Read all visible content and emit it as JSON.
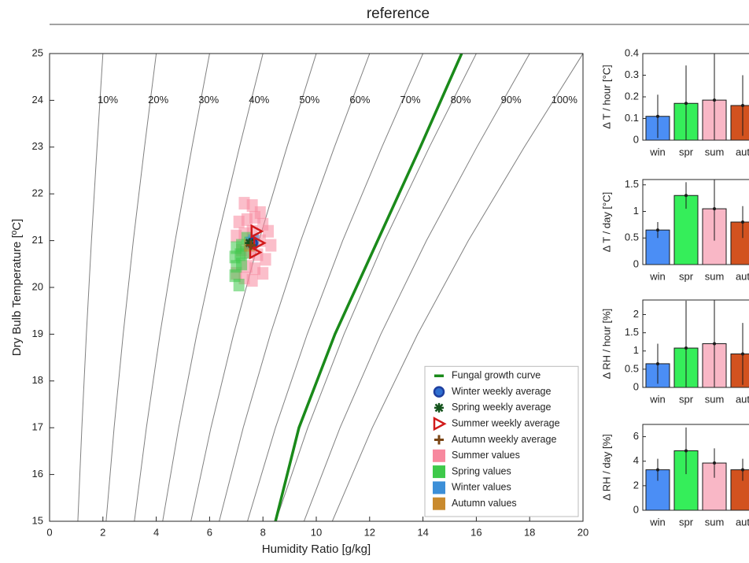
{
  "chart_data": [
    {
      "type": "psychro",
      "title": "reference",
      "xlabel": "Humidity Ratio [g/kg]",
      "ylabel": "Dry Bulb Temperature [ºC]",
      "xlim": [
        0,
        20
      ],
      "ylim": [
        15,
        25
      ],
      "xticks": [
        0,
        2,
        4,
        6,
        8,
        10,
        12,
        14,
        16,
        18,
        20
      ],
      "yticks": [
        15,
        16,
        17,
        18,
        19,
        20,
        21,
        22,
        23,
        24,
        25
      ],
      "legend": "lower right",
      "series": [
        {
          "name": "10%",
          "color": "#808080",
          "marker": "curve",
          "x": [
            1.06,
            1.21,
            1.38,
            1.57,
            1.78,
            2.0
          ],
          "y": [
            15,
            17,
            19,
            21,
            23,
            25
          ]
        },
        {
          "name": "20%",
          "color": "#808080",
          "marker": "curve",
          "x": [
            2.12,
            2.42,
            2.76,
            3.14,
            3.56,
            4.0
          ],
          "y": [
            15,
            17,
            19,
            21,
            23,
            25
          ]
        },
        {
          "name": "30%",
          "color": "#808080",
          "marker": "curve",
          "x": [
            3.18,
            3.63,
            4.14,
            4.71,
            5.34,
            6.0
          ],
          "y": [
            15,
            17,
            19,
            21,
            23,
            25
          ]
        },
        {
          "name": "40%",
          "color": "#808080",
          "marker": "curve",
          "x": [
            4.24,
            4.84,
            5.52,
            6.28,
            7.12,
            8.0
          ],
          "y": [
            15,
            17,
            19,
            21,
            23,
            25
          ]
        },
        {
          "name": "50%",
          "color": "#808080",
          "marker": "curve",
          "x": [
            5.3,
            6.05,
            6.9,
            7.85,
            8.9,
            10.0
          ],
          "y": [
            15,
            17,
            19,
            21,
            23,
            25
          ]
        },
        {
          "name": "60%",
          "color": "#808080",
          "marker": "curve",
          "x": [
            6.36,
            7.26,
            8.28,
            9.42,
            10.68,
            12.0
          ],
          "y": [
            15,
            17,
            19,
            21,
            23,
            25
          ]
        },
        {
          "name": "70%",
          "color": "#808080",
          "marker": "curve",
          "x": [
            7.42,
            8.47,
            9.66,
            10.99,
            12.46,
            14.0
          ],
          "y": [
            15,
            17,
            19,
            21,
            23,
            25
          ]
        },
        {
          "name": "80%",
          "color": "#808080",
          "marker": "curve",
          "x": [
            8.48,
            9.68,
            11.04,
            12.56,
            14.24,
            16.0
          ],
          "y": [
            15,
            17,
            19,
            21,
            23,
            25
          ]
        },
        {
          "name": "90%",
          "color": "#808080",
          "marker": "curve",
          "x": [
            9.54,
            10.89,
            12.42,
            14.13,
            16.02,
            18.0
          ],
          "y": [
            15,
            17,
            19,
            21,
            23,
            25
          ]
        },
        {
          "name": "100%",
          "color": "#808080",
          "marker": "curve",
          "x": [
            10.6,
            12.1,
            13.8,
            15.7,
            17.8,
            20.0
          ],
          "y": [
            15,
            17,
            19,
            21,
            23,
            25
          ]
        },
        {
          "name": "Summer values",
          "color": "#f7889e",
          "marker": "square",
          "x": [
            7.3,
            7.6,
            7.9,
            7.1,
            7.4,
            7.7,
            8.0,
            8.2,
            7.0,
            7.3,
            7.6,
            7.9,
            8.3,
            7.2,
            7.5,
            7.8,
            8.1,
            7.4,
            7.7,
            7.0,
            7.3,
            7.6,
            8.0
          ],
          "y": [
            21.8,
            21.75,
            21.6,
            21.4,
            21.45,
            21.5,
            21.35,
            21.2,
            21.1,
            21.15,
            21.2,
            21.0,
            20.9,
            20.8,
            20.75,
            20.7,
            20.6,
            20.45,
            20.4,
            20.3,
            20.2,
            20.15,
            20.3
          ]
        },
        {
          "name": "Spring values",
          "color": "#3ec94a",
          "marker": "square",
          "x": [
            7.0,
            7.2,
            7.4,
            6.95,
            7.15,
            7.35,
            7.0,
            7.2,
            6.95,
            7.1,
            7.5
          ],
          "y": [
            20.85,
            20.9,
            21.05,
            20.65,
            20.7,
            20.75,
            20.45,
            20.5,
            20.25,
            20.05,
            20.95
          ]
        },
        {
          "name": "Winter values",
          "color": "#3c8fd8",
          "marker": "square",
          "x": [
            7.55,
            7.65
          ],
          "y": [
            20.95,
            21.0
          ]
        },
        {
          "name": "Autumn values",
          "color": "#c98a2e",
          "marker": "square",
          "x": [
            7.5
          ],
          "y": [
            20.9
          ]
        },
        {
          "name": "Fungal growth curve",
          "color": "#1a8a1a",
          "marker": "line",
          "x": [
            8.47,
            9.35,
            10.7,
            12.3,
            13.9,
            15.45
          ],
          "y": [
            15,
            17,
            19,
            21,
            23,
            25
          ]
        },
        {
          "name": "Winter weekly average",
          "color": "#1f3f9f",
          "marker": "o",
          "x": [
            7.6
          ],
          "y": [
            20.95
          ]
        },
        {
          "name": "Spring weekly average",
          "color": "#14531c",
          "marker": "*",
          "x": [
            7.5
          ],
          "y": [
            20.95
          ]
        },
        {
          "name": "Summer weekly average",
          "color": "#d11a1a",
          "marker": ">",
          "x": [
            7.75,
            7.85,
            7.7
          ],
          "y": [
            21.2,
            20.95,
            20.75
          ]
        },
        {
          "name": "Autumn weekly average",
          "color": "#7a4514",
          "marker": "+",
          "x": [
            7.55
          ],
          "y": [
            20.9
          ]
        }
      ]
    },
    {
      "type": "bar",
      "ylabel": "Δ T / hour [°C]",
      "categories": [
        "win",
        "spr",
        "sum",
        "aut"
      ],
      "values": [
        0.11,
        0.17,
        0.185,
        0.16
      ],
      "errors": [
        0.1,
        0.175,
        0.25,
        0.14
      ],
      "colors": [
        "#4b8ef5",
        "#35ee5a",
        "#f9b7c6",
        "#d2521f"
      ],
      "ylim": [
        0,
        0.4
      ],
      "yticks": [
        0,
        0.1,
        0.2,
        0.3,
        0.4
      ]
    },
    {
      "type": "bar",
      "ylabel": "Δ T / day [°C]",
      "categories": [
        "win",
        "spr",
        "sum",
        "aut"
      ],
      "values": [
        0.65,
        1.3,
        1.05,
        0.8
      ],
      "errors": [
        0.15,
        0.25,
        0.6,
        0.3
      ],
      "colors": [
        "#4b8ef5",
        "#35ee5a",
        "#f9b7c6",
        "#d2521f"
      ],
      "ylim": [
        0,
        1.6
      ],
      "yticks": [
        0,
        0.5,
        1,
        1.5
      ]
    },
    {
      "type": "bar",
      "ylabel": "Δ RH / hour [%]",
      "categories": [
        "win",
        "spr",
        "sum",
        "aut"
      ],
      "values": [
        0.65,
        1.08,
        1.2,
        0.92
      ],
      "errors": [
        0.55,
        1.3,
        1.2,
        0.85
      ],
      "colors": [
        "#4b8ef5",
        "#35ee5a",
        "#f9b7c6",
        "#d2521f"
      ],
      "ylim": [
        0,
        2.4
      ],
      "yticks": [
        0,
        0.5,
        1,
        1.5,
        2
      ]
    },
    {
      "type": "bar",
      "ylabel": "Δ RH / day [%]",
      "categories": [
        "win",
        "spr",
        "sum",
        "aut"
      ],
      "values": [
        3.3,
        4.85,
        3.85,
        3.3
      ],
      "errors": [
        0.9,
        1.9,
        1.2,
        0.9
      ],
      "colors": [
        "#4b8ef5",
        "#35ee5a",
        "#f9b7c6",
        "#d2521f"
      ],
      "ylim": [
        0,
        7
      ],
      "yticks": [
        0,
        2,
        4,
        6
      ]
    }
  ]
}
